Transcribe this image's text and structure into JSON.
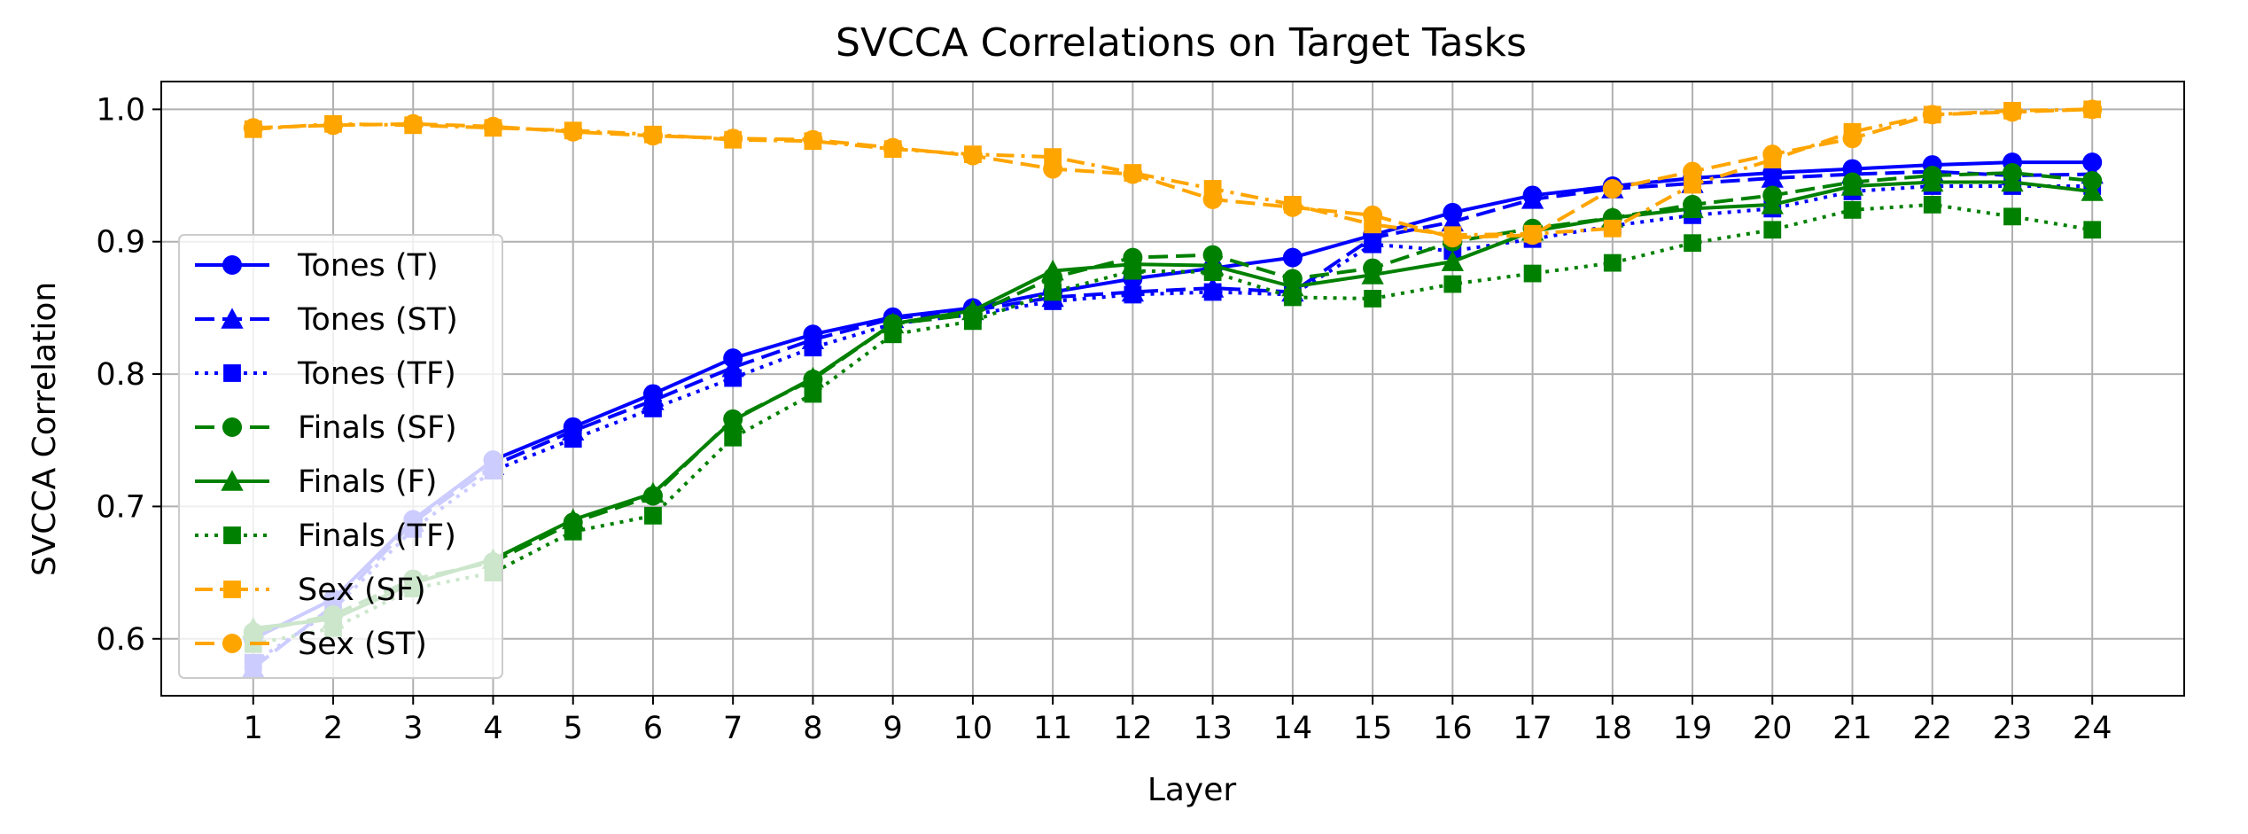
{
  "chart_data": {
    "type": "line",
    "title": "SVCCA Correlations on Target Tasks",
    "xlabel": "Layer",
    "ylabel": "SVCCA Correlation",
    "x": [
      1,
      2,
      3,
      4,
      5,
      6,
      7,
      8,
      9,
      10,
      11,
      12,
      13,
      14,
      15,
      16,
      17,
      18,
      19,
      20,
      21,
      22,
      23,
      24
    ],
    "xlim": [
      -0.15,
      25.15
    ],
    "ylim": [
      0.557,
      1.021
    ],
    "yticks": [
      0.6,
      0.7,
      0.8,
      0.9,
      1.0
    ],
    "ytick_labels": [
      "0.6",
      "0.7",
      "0.8",
      "0.9",
      "1.0"
    ],
    "grid": true,
    "legend_position": "center-left",
    "series": [
      {
        "name": "Tones (T)",
        "color": "#0000ff",
        "linestyle": "solid",
        "marker": "circle",
        "values": [
          0.6,
          0.63,
          0.69,
          0.735,
          0.76,
          0.785,
          0.812,
          0.83,
          0.843,
          0.85,
          0.862,
          0.872,
          0.88,
          0.888,
          0.905,
          0.922,
          0.935,
          0.942,
          0.948,
          0.952,
          0.955,
          0.958,
          0.96,
          0.96
        ]
      },
      {
        "name": "Tones (ST)",
        "color": "#0000ff",
        "linestyle": "dashed",
        "marker": "triangle",
        "values": [
          0.578,
          0.625,
          0.688,
          0.731,
          0.757,
          0.78,
          0.805,
          0.826,
          0.842,
          0.848,
          0.858,
          0.862,
          0.865,
          0.862,
          0.903,
          0.915,
          0.932,
          0.94,
          0.944,
          0.948,
          0.951,
          0.953,
          0.95,
          0.951
        ]
      },
      {
        "name": "Tones (TF)",
        "color": "#0000ff",
        "linestyle": "dotted",
        "marker": "square",
        "values": [
          0.582,
          0.622,
          0.683,
          0.727,
          0.751,
          0.774,
          0.797,
          0.82,
          0.838,
          0.845,
          0.855,
          0.86,
          0.862,
          0.86,
          0.898,
          0.893,
          0.902,
          0.912,
          0.92,
          0.925,
          0.938,
          0.942,
          0.942,
          0.942
        ]
      },
      {
        "name": "Finals (SF)",
        "color": "#008000",
        "linestyle": "dashed",
        "marker": "circle",
        "values": [
          0.605,
          0.618,
          0.645,
          0.658,
          0.688,
          0.708,
          0.766,
          0.796,
          0.838,
          0.845,
          0.873,
          0.888,
          0.89,
          0.872,
          0.88,
          0.9,
          0.91,
          0.918,
          0.928,
          0.935,
          0.945,
          0.95,
          0.952,
          0.946
        ]
      },
      {
        "name": "Finals (F)",
        "color": "#008000",
        "linestyle": "solid",
        "marker": "triangle",
        "values": [
          0.608,
          0.615,
          0.642,
          0.66,
          0.69,
          0.71,
          0.765,
          0.797,
          0.838,
          0.848,
          0.878,
          0.883,
          0.882,
          0.866,
          0.875,
          0.885,
          0.908,
          0.918,
          0.925,
          0.928,
          0.942,
          0.945,
          0.945,
          0.938
        ]
      },
      {
        "name": "Finals (TF)",
        "color": "#008000",
        "linestyle": "dotted",
        "marker": "square",
        "values": [
          0.596,
          0.608,
          0.638,
          0.65,
          0.681,
          0.693,
          0.752,
          0.785,
          0.83,
          0.84,
          0.862,
          0.878,
          0.877,
          0.858,
          0.857,
          0.868,
          0.876,
          0.884,
          0.899,
          0.909,
          0.924,
          0.928,
          0.919,
          0.909
        ]
      },
      {
        "name": "Sex (SF)",
        "color": "#ffa500",
        "linestyle": "dashdot",
        "marker": "square",
        "values": [
          0.985,
          0.989,
          0.988,
          0.986,
          0.984,
          0.981,
          0.977,
          0.976,
          0.97,
          0.966,
          0.964,
          0.952,
          0.94,
          0.928,
          0.913,
          0.905,
          0.906,
          0.91,
          0.943,
          0.962,
          0.983,
          0.996,
          0.999,
          1.0
        ]
      },
      {
        "name": "Sex (ST)",
        "color": "#ffa500",
        "linestyle": "dashed",
        "marker": "circle",
        "values": [
          0.986,
          0.988,
          0.989,
          0.987,
          0.983,
          0.98,
          0.978,
          0.977,
          0.971,
          0.965,
          0.955,
          0.951,
          0.932,
          0.926,
          0.92,
          0.903,
          0.905,
          0.94,
          0.953,
          0.966,
          0.978,
          0.996,
          0.998,
          1.0
        ]
      }
    ]
  }
}
